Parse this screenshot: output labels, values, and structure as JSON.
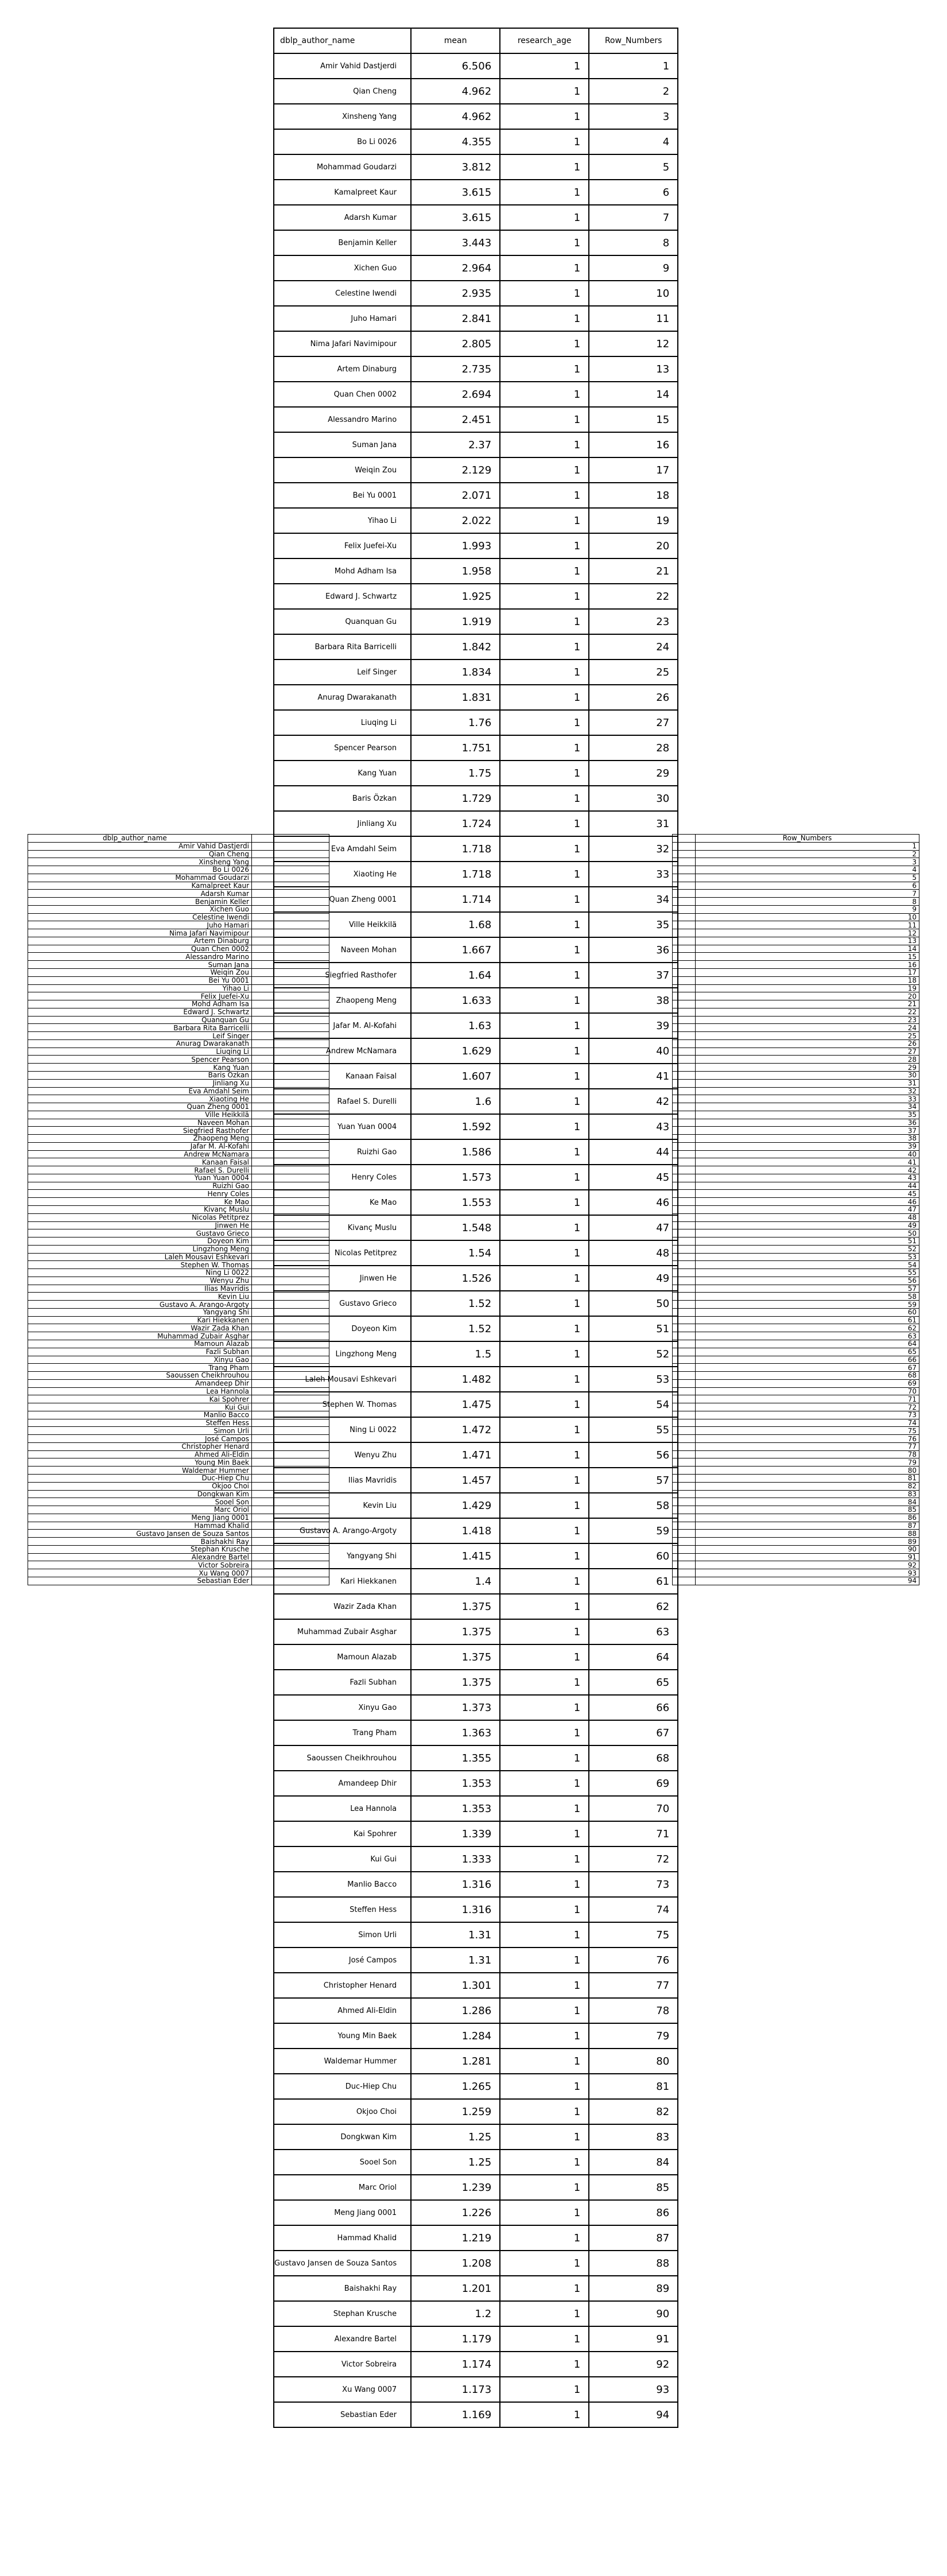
{
  "main_table": {
    "headers": [
      "dblp_author_name",
      "mean",
      "research_age",
      "Row_Numbers"
    ],
    "rows": [
      {
        "author": "Amir Vahid Dastjerdi",
        "mean": "6.506",
        "research_age": "1",
        "row_number": "1"
      },
      {
        "author": "Qian Cheng",
        "mean": "4.962",
        "research_age": "1",
        "row_number": "2"
      },
      {
        "author": "Xinsheng Yang",
        "mean": "4.962",
        "research_age": "1",
        "row_number": "3"
      },
      {
        "author": "Bo Li 0026",
        "mean": "4.355",
        "research_age": "1",
        "row_number": "4"
      },
      {
        "author": "Mohammad Goudarzi",
        "mean": "3.812",
        "research_age": "1",
        "row_number": "5"
      },
      {
        "author": "Kamalpreet Kaur",
        "mean": "3.615",
        "research_age": "1",
        "row_number": "6"
      },
      {
        "author": "Adarsh Kumar",
        "mean": "3.615",
        "research_age": "1",
        "row_number": "7"
      },
      {
        "author": "Benjamin Keller",
        "mean": "3.443",
        "research_age": "1",
        "row_number": "8"
      },
      {
        "author": "Xichen Guo",
        "mean": "2.964",
        "research_age": "1",
        "row_number": "9"
      },
      {
        "author": "Celestine Iwendi",
        "mean": "2.935",
        "research_age": "1",
        "row_number": "10"
      },
      {
        "author": "Juho Hamari",
        "mean": "2.841",
        "research_age": "1",
        "row_number": "11"
      },
      {
        "author": "Nima Jafari Navimipour",
        "mean": "2.805",
        "research_age": "1",
        "row_number": "12"
      },
      {
        "author": "Artem Dinaburg",
        "mean": "2.735",
        "research_age": "1",
        "row_number": "13"
      },
      {
        "author": "Quan Chen 0002",
        "mean": "2.694",
        "research_age": "1",
        "row_number": "14"
      },
      {
        "author": "Alessandro Marino",
        "mean": "2.451",
        "research_age": "1",
        "row_number": "15"
      },
      {
        "author": "Suman Jana",
        "mean": "2.37",
        "research_age": "1",
        "row_number": "16"
      },
      {
        "author": "Weiqin Zou",
        "mean": "2.129",
        "research_age": "1",
        "row_number": "17"
      },
      {
        "author": "Bei Yu 0001",
        "mean": "2.071",
        "research_age": "1",
        "row_number": "18"
      },
      {
        "author": "Yihao Li",
        "mean": "2.022",
        "research_age": "1",
        "row_number": "19"
      },
      {
        "author": "Felix Juefei-Xu",
        "mean": "1.993",
        "research_age": "1",
        "row_number": "20"
      },
      {
        "author": "Mohd Adham Isa",
        "mean": "1.958",
        "research_age": "1",
        "row_number": "21"
      },
      {
        "author": "Edward J. Schwartz",
        "mean": "1.925",
        "research_age": "1",
        "row_number": "22"
      },
      {
        "author": "Quanquan Gu",
        "mean": "1.919",
        "research_age": "1",
        "row_number": "23"
      },
      {
        "author": "Barbara Rita Barricelli",
        "mean": "1.842",
        "research_age": "1",
        "row_number": "24"
      },
      {
        "author": "Leif Singer",
        "mean": "1.834",
        "research_age": "1",
        "row_number": "25"
      },
      {
        "author": "Anurag Dwarakanath",
        "mean": "1.831",
        "research_age": "1",
        "row_number": "26"
      },
      {
        "author": "Liuqing Li",
        "mean": "1.76",
        "research_age": "1",
        "row_number": "27"
      },
      {
        "author": "Spencer Pearson",
        "mean": "1.751",
        "research_age": "1",
        "row_number": "28"
      },
      {
        "author": "Kang Yuan",
        "mean": "1.75",
        "research_age": "1",
        "row_number": "29"
      },
      {
        "author": "Baris Özkan",
        "mean": "1.729",
        "research_age": "1",
        "row_number": "30"
      },
      {
        "author": "Jinliang Xu",
        "mean": "1.724",
        "research_age": "1",
        "row_number": "31"
      },
      {
        "author": "Eva Amdahl Seim",
        "mean": "1.718",
        "research_age": "1",
        "row_number": "32"
      },
      {
        "author": "Xiaoting He",
        "mean": "1.718",
        "research_age": "1",
        "row_number": "33"
      },
      {
        "author": "Quan Zheng 0001",
        "mean": "1.714",
        "research_age": "1",
        "row_number": "34"
      },
      {
        "author": "Ville Heikkilä",
        "mean": "1.68",
        "research_age": "1",
        "row_number": "35"
      },
      {
        "author": "Naveen Mohan",
        "mean": "1.667",
        "research_age": "1",
        "row_number": "36"
      },
      {
        "author": "Siegfried Rasthofer",
        "mean": "1.64",
        "research_age": "1",
        "row_number": "37"
      },
      {
        "author": "Zhaopeng Meng",
        "mean": "1.633",
        "research_age": "1",
        "row_number": "38"
      },
      {
        "author": "Jafar M. Al-Kofahi",
        "mean": "1.63",
        "research_age": "1",
        "row_number": "39"
      },
      {
        "author": "Andrew McNamara",
        "mean": "1.629",
        "research_age": "1",
        "row_number": "40"
      },
      {
        "author": "Kanaan Faisal",
        "mean": "1.607",
        "research_age": "1",
        "row_number": "41"
      },
      {
        "author": "Rafael S. Durelli",
        "mean": "1.6",
        "research_age": "1",
        "row_number": "42"
      },
      {
        "author": "Yuan Yuan 0004",
        "mean": "1.592",
        "research_age": "1",
        "row_number": "43"
      },
      {
        "author": "Ruizhi Gao",
        "mean": "1.586",
        "research_age": "1",
        "row_number": "44"
      },
      {
        "author": "Henry Coles",
        "mean": "1.573",
        "research_age": "1",
        "row_number": "45"
      },
      {
        "author": "Ke Mao",
        "mean": "1.553",
        "research_age": "1",
        "row_number": "46"
      },
      {
        "author": "Kivanç Muslu",
        "mean": "1.548",
        "research_age": "1",
        "row_number": "47"
      },
      {
        "author": "Nicolas Petitprez",
        "mean": "1.54",
        "research_age": "1",
        "row_number": "48"
      },
      {
        "author": "Jinwen He",
        "mean": "1.526",
        "research_age": "1",
        "row_number": "49"
      },
      {
        "author": "Gustavo Grieco",
        "mean": "1.52",
        "research_age": "1",
        "row_number": "50"
      },
      {
        "author": "Doyeon Kim",
        "mean": "1.52",
        "research_age": "1",
        "row_number": "51"
      },
      {
        "author": "Lingzhong Meng",
        "mean": "1.5",
        "research_age": "1",
        "row_number": "52"
      },
      {
        "author": "Laleh Mousavi Eshkevari",
        "mean": "1.482",
        "research_age": "1",
        "row_number": "53"
      },
      {
        "author": "Stephen W. Thomas",
        "mean": "1.475",
        "research_age": "1",
        "row_number": "54"
      },
      {
        "author": "Ning Li 0022",
        "mean": "1.472",
        "research_age": "1",
        "row_number": "55"
      },
      {
        "author": "Wenyu Zhu",
        "mean": "1.471",
        "research_age": "1",
        "row_number": "56"
      },
      {
        "author": "Ilias Mavridis",
        "mean": "1.457",
        "research_age": "1",
        "row_number": "57"
      },
      {
        "author": "Kevin Liu",
        "mean": "1.429",
        "research_age": "1",
        "row_number": "58"
      },
      {
        "author": "Gustavo A. Arango-Argoty",
        "mean": "1.418",
        "research_age": "1",
        "row_number": "59"
      },
      {
        "author": "Yangyang Shi",
        "mean": "1.415",
        "research_age": "1",
        "row_number": "60"
      },
      {
        "author": "Kari Hiekkanen",
        "mean": "1.4",
        "research_age": "1",
        "row_number": "61"
      },
      {
        "author": "Wazir Zada Khan",
        "mean": "1.375",
        "research_age": "1",
        "row_number": "62"
      },
      {
        "author": "Muhammad Zubair Asghar",
        "mean": "1.375",
        "research_age": "1",
        "row_number": "63"
      },
      {
        "author": "Mamoun Alazab",
        "mean": "1.375",
        "research_age": "1",
        "row_number": "64"
      },
      {
        "author": "Fazli Subhan",
        "mean": "1.375",
        "research_age": "1",
        "row_number": "65"
      },
      {
        "author": "Xinyu Gao",
        "mean": "1.373",
        "research_age": "1",
        "row_number": "66"
      },
      {
        "author": "Trang Pham",
        "mean": "1.363",
        "research_age": "1",
        "row_number": "67"
      },
      {
        "author": "Saoussen Cheikhrouhou",
        "mean": "1.355",
        "research_age": "1",
        "row_number": "68"
      },
      {
        "author": "Amandeep Dhir",
        "mean": "1.353",
        "research_age": "1",
        "row_number": "69"
      },
      {
        "author": "Lea Hannola",
        "mean": "1.353",
        "research_age": "1",
        "row_number": "70"
      },
      {
        "author": "Kai Spohrer",
        "mean": "1.339",
        "research_age": "1",
        "row_number": "71"
      },
      {
        "author": "Kui Gui",
        "mean": "1.333",
        "research_age": "1",
        "row_number": "72"
      },
      {
        "author": "Manlio Bacco",
        "mean": "1.316",
        "research_age": "1",
        "row_number": "73"
      },
      {
        "author": "Steffen Hess",
        "mean": "1.316",
        "research_age": "1",
        "row_number": "74"
      },
      {
        "author": "Simon Urli",
        "mean": "1.31",
        "research_age": "1",
        "row_number": "75"
      },
      {
        "author": "José Campos",
        "mean": "1.31",
        "research_age": "1",
        "row_number": "76"
      },
      {
        "author": "Christopher Henard",
        "mean": "1.301",
        "research_age": "1",
        "row_number": "77"
      },
      {
        "author": "Ahmed Ali-Eldin",
        "mean": "1.286",
        "research_age": "1",
        "row_number": "78"
      },
      {
        "author": "Young Min Baek",
        "mean": "1.284",
        "research_age": "1",
        "row_number": "79"
      },
      {
        "author": "Waldemar Hummer",
        "mean": "1.281",
        "research_age": "1",
        "row_number": "80"
      },
      {
        "author": "Duc-Hiep Chu",
        "mean": "1.265",
        "research_age": "1",
        "row_number": "81"
      },
      {
        "author": "Okjoo Choi",
        "mean": "1.259",
        "research_age": "1",
        "row_number": "82"
      },
      {
        "author": "Dongkwan Kim",
        "mean": "1.25",
        "research_age": "1",
        "row_number": "83"
      },
      {
        "author": "Sooel Son",
        "mean": "1.25",
        "research_age": "1",
        "row_number": "84"
      },
      {
        "author": "Marc Oriol",
        "mean": "1.239",
        "research_age": "1",
        "row_number": "85"
      },
      {
        "author": "Meng Jiang 0001",
        "mean": "1.226",
        "research_age": "1",
        "row_number": "86"
      },
      {
        "author": "Hammad Khalid",
        "mean": "1.219",
        "research_age": "1",
        "row_number": "87"
      },
      {
        "author": "Gustavo Jansen de Souza Santos",
        "mean": "1.208",
        "research_age": "1",
        "row_number": "88"
      },
      {
        "author": "Baishakhi Ray",
        "mean": "1.201",
        "research_age": "1",
        "row_number": "89"
      },
      {
        "author": "Stephan Krusche",
        "mean": "1.2",
        "research_age": "1",
        "row_number": "90"
      },
      {
        "author": "Alexandre Bartel",
        "mean": "1.179",
        "research_age": "1",
        "row_number": "91"
      },
      {
        "author": "Victor Sobreira",
        "mean": "1.174",
        "research_age": "1",
        "row_number": "92"
      },
      {
        "author": "Xu Wang 0007",
        "mean": "1.173",
        "research_age": "1",
        "row_number": "93"
      },
      {
        "author": "Sebastian Eder",
        "mean": "1.169",
        "research_age": "1",
        "row_number": "94"
      }
    ]
  },
  "left_list": {
    "header": "dblp_author_name"
  },
  "right_list": {
    "header": "Row_Numbers"
  }
}
